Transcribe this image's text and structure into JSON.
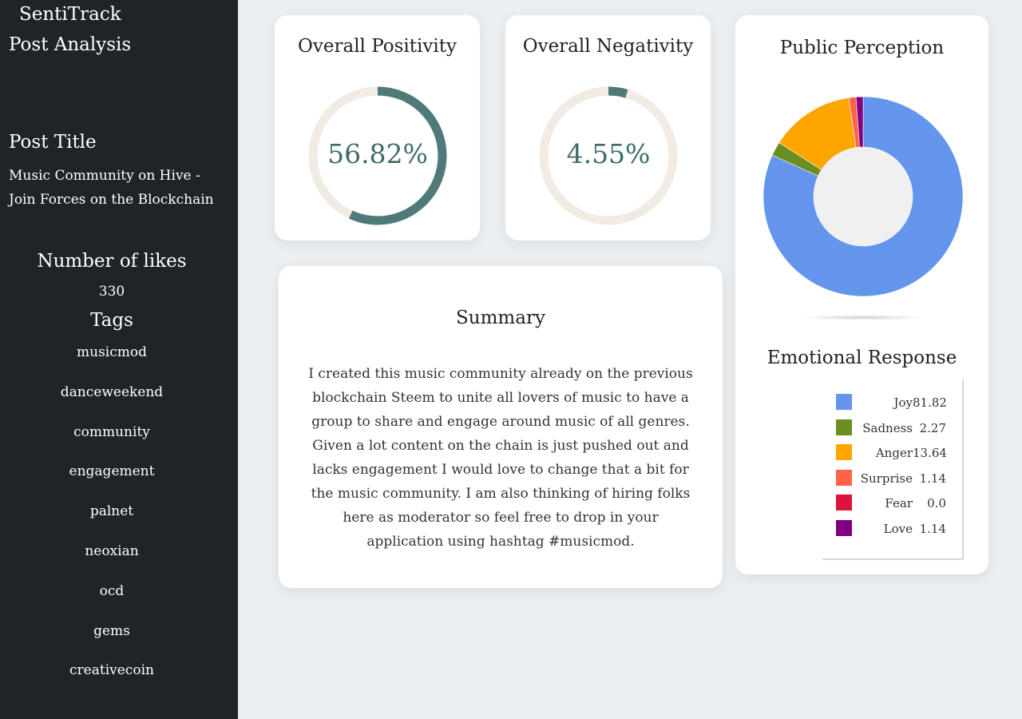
{
  "sidebar": {
    "brand": "SentiTrack",
    "heading": "Post Analysis",
    "post_title_label": "Post Title",
    "post_title": "Music Community on Hive - Join Forces on the Blockchain",
    "likes_label": "Number of likes",
    "likes_value": "330",
    "tags_label": "Tags",
    "tags": [
      "musicmod",
      "danceweekend",
      "community",
      "engagement",
      "palnet",
      "neoxian",
      "ocd",
      "gems",
      "creativecoin"
    ]
  },
  "positivity": {
    "title": "Overall Positivity",
    "value_text": "56.82%",
    "value": 56.82,
    "fill_color": "#4f7a79",
    "track_color": "#f2ebe4"
  },
  "negativity": {
    "title": "Overall Negativity",
    "value_text": "4.55%",
    "value": 4.55,
    "fill_color": "#4f7a79",
    "track_color": "#f2ebe4"
  },
  "summary": {
    "title": "Summary",
    "text": "I created this music community already on the previous blockchain Steem to unite all lovers of music to have a group to share and engage around music of all genres. Given a lot content on the chain is just pushed out and lacks engagement I would love to change that a bit for the music community. I am also thinking of hiring folks here as moderator so feel free to drop in your application using hashtag #musicmod."
  },
  "perception": {
    "title": "Public Perception",
    "emotion_title": "Emotional Response",
    "chart_data": {
      "type": "pie",
      "title": "",
      "categories": [
        "Joy",
        "Sadness",
        "Anger",
        "Surprise",
        "Fear",
        "Love"
      ],
      "values": [
        81.82,
        2.27,
        13.64,
        1.14,
        0.0,
        1.14
      ],
      "value_labels": [
        "81.82",
        "2.27",
        "13.64",
        "1.14",
        "0.0",
        "1.14"
      ],
      "colors": [
        "#6495ed",
        "#6b8e23",
        "#ffa500",
        "#ff6347",
        "#dc143c",
        "#800080"
      ],
      "donut": true,
      "hole_color": "#f0f0f0",
      "legend_position": "bottom-right"
    }
  }
}
